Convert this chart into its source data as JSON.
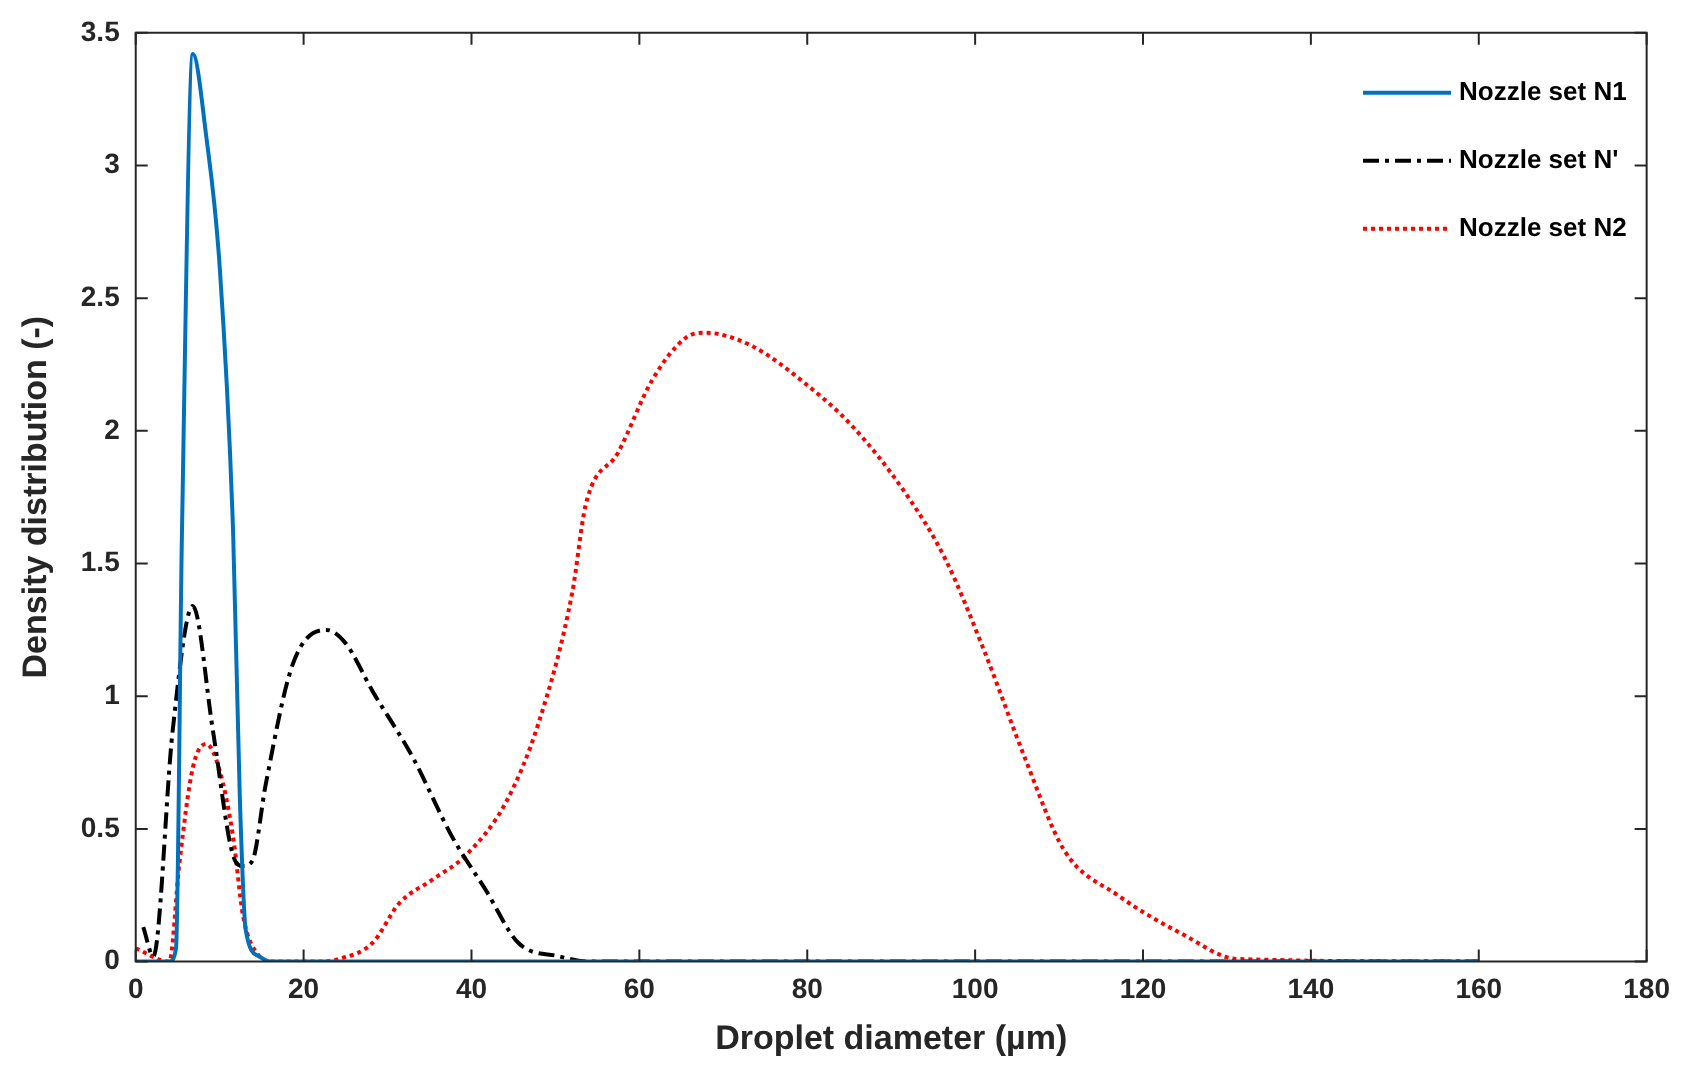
{
  "chart_data": {
    "type": "line",
    "xlabel": "Droplet diameter (µm)",
    "ylabel": "Density distribution (-)",
    "xlim": [
      0,
      180
    ],
    "xticks": [
      0,
      20,
      40,
      60,
      80,
      100,
      120,
      140,
      160,
      180
    ],
    "ylim": [
      0,
      3.5
    ],
    "yticks": [
      0,
      0.5,
      1,
      1.5,
      2,
      2.5,
      3,
      3.5
    ],
    "grid": false,
    "legend": "top right",
    "marker": "none",
    "series": [
      {
        "name": "Nozzle set N1",
        "color": "#0072bd",
        "line_style": "solid",
        "x": [
          0,
          4,
          4.8,
          5.5,
          6.8,
          8.4,
          10,
          11.6,
          12.4,
          13.1,
          14.7,
          16,
          160
        ],
        "values": [
          0,
          0,
          0.05,
          1.6,
          3.42,
          3.11,
          2.62,
          1.62,
          0.62,
          0.12,
          0.02,
          0,
          0
        ]
      },
      {
        "name": "Nozzle set N'",
        "color": "#000000",
        "line_style": "dashdot",
        "x": [
          0.9,
          2.1,
          4.4,
          6.8,
          9.2,
          11.6,
          12.8,
          13.9,
          15.5,
          18.7,
          22.7,
          25,
          28.2,
          33,
          37.7,
          41.7,
          45.6,
          50.4,
          54,
          160
        ],
        "values": [
          0.13,
          0.02,
          0.87,
          1.34,
          0.87,
          0.4,
          0.36,
          0.38,
          0.67,
          1.12,
          1.25,
          1.2,
          1.02,
          0.77,
          0.47,
          0.27,
          0.07,
          0.02,
          0,
          0
        ]
      },
      {
        "name": "Nozzle set N2",
        "color": "#ff0000",
        "line_style": "dotted",
        "x": [
          0,
          4,
          5.2,
          6.8,
          8.4,
          10,
          11.6,
          12.8,
          14.7,
          16,
          22,
          24.2,
          28.2,
          31.4,
          35.4,
          39.3,
          44.1,
          48,
          52,
          53.6,
          57.5,
          61.5,
          65.5,
          67.8,
          73.4,
          79.7,
          85.3,
          91.6,
          96.4,
          101.1,
          105.9,
          110.6,
          117,
          124.9,
          131.2,
          160
        ],
        "values": [
          0.05,
          0,
          0.37,
          0.73,
          0.82,
          0.72,
          0.47,
          0.17,
          0.02,
          0,
          0,
          0.01,
          0.07,
          0.22,
          0.31,
          0.4,
          0.6,
          0.9,
          1.39,
          1.72,
          1.92,
          2.19,
          2.35,
          2.37,
          2.32,
          2.18,
          2.02,
          1.77,
          1.52,
          1.17,
          0.77,
          0.42,
          0.25,
          0.1,
          0.01,
          0
        ]
      }
    ]
  }
}
